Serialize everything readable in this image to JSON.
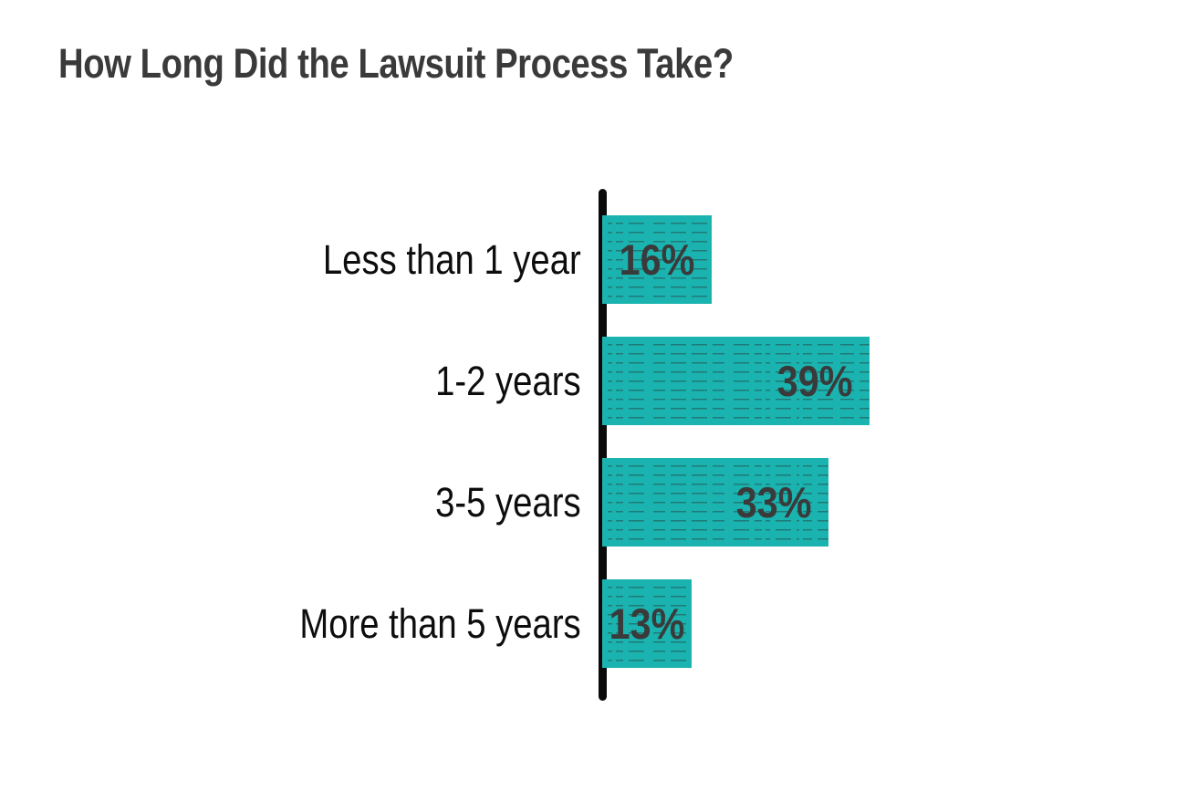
{
  "chart_data": {
    "type": "bar",
    "orientation": "horizontal",
    "title": "How Long Did the Lawsuit Process Take?",
    "categories": [
      "Less than 1 year",
      "1-2 years",
      "3-5 years",
      "More than 5 years"
    ],
    "values": [
      16,
      39,
      33,
      13
    ],
    "value_labels": [
      "16%",
      "39%",
      "33%",
      "13%"
    ],
    "unit": "%",
    "xlim": [
      0,
      40
    ],
    "grid": false,
    "legend": "none",
    "colors": {
      "bar": "#1ab3af",
      "bar_texture_line": "rgba(38,66,64,0.5)",
      "axis": "#0a0a0a",
      "category_label": "#0d0d0d",
      "value_label": "#3a3a3a",
      "title": "#3a3a3a",
      "background": "#ffffff"
    }
  }
}
